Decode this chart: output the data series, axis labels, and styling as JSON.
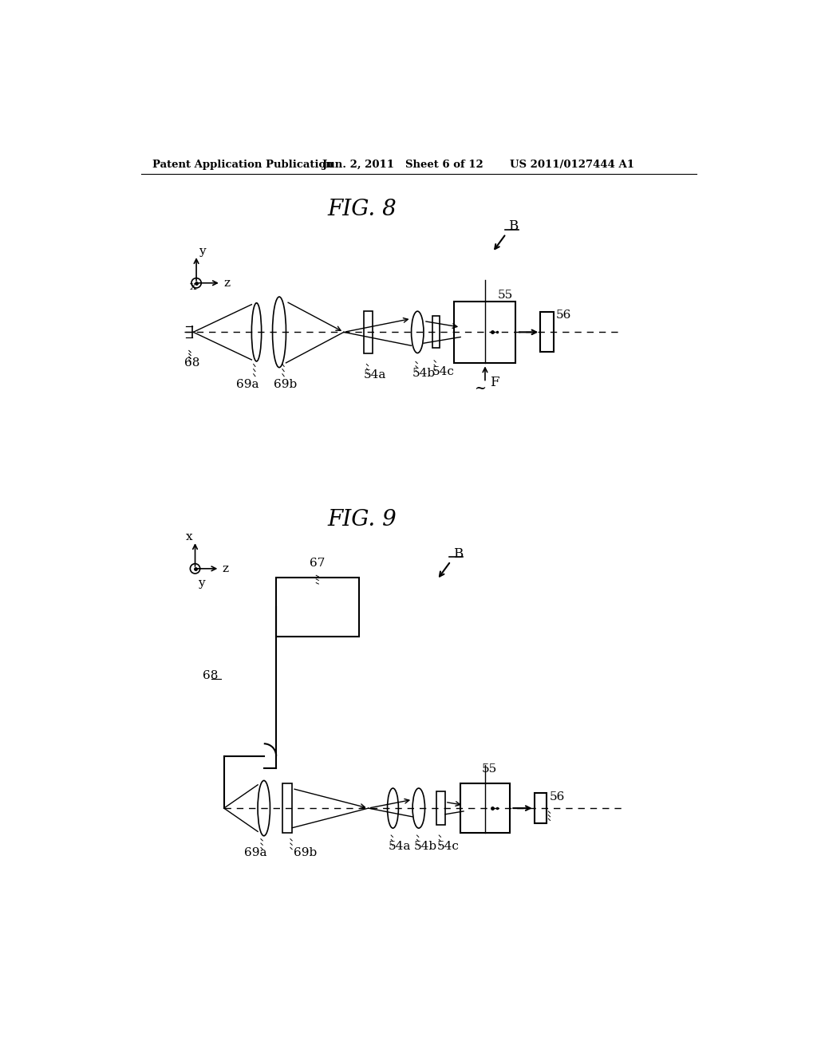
{
  "bg_color": "#ffffff",
  "header_text": "Patent Application Publication",
  "header_date": "Jun. 2, 2011",
  "header_sheet": "Sheet 6 of 12",
  "header_patent": "US 2011/0127444 A1",
  "fig8_title": "FIG. 8",
  "fig9_title": "FIG. 9"
}
